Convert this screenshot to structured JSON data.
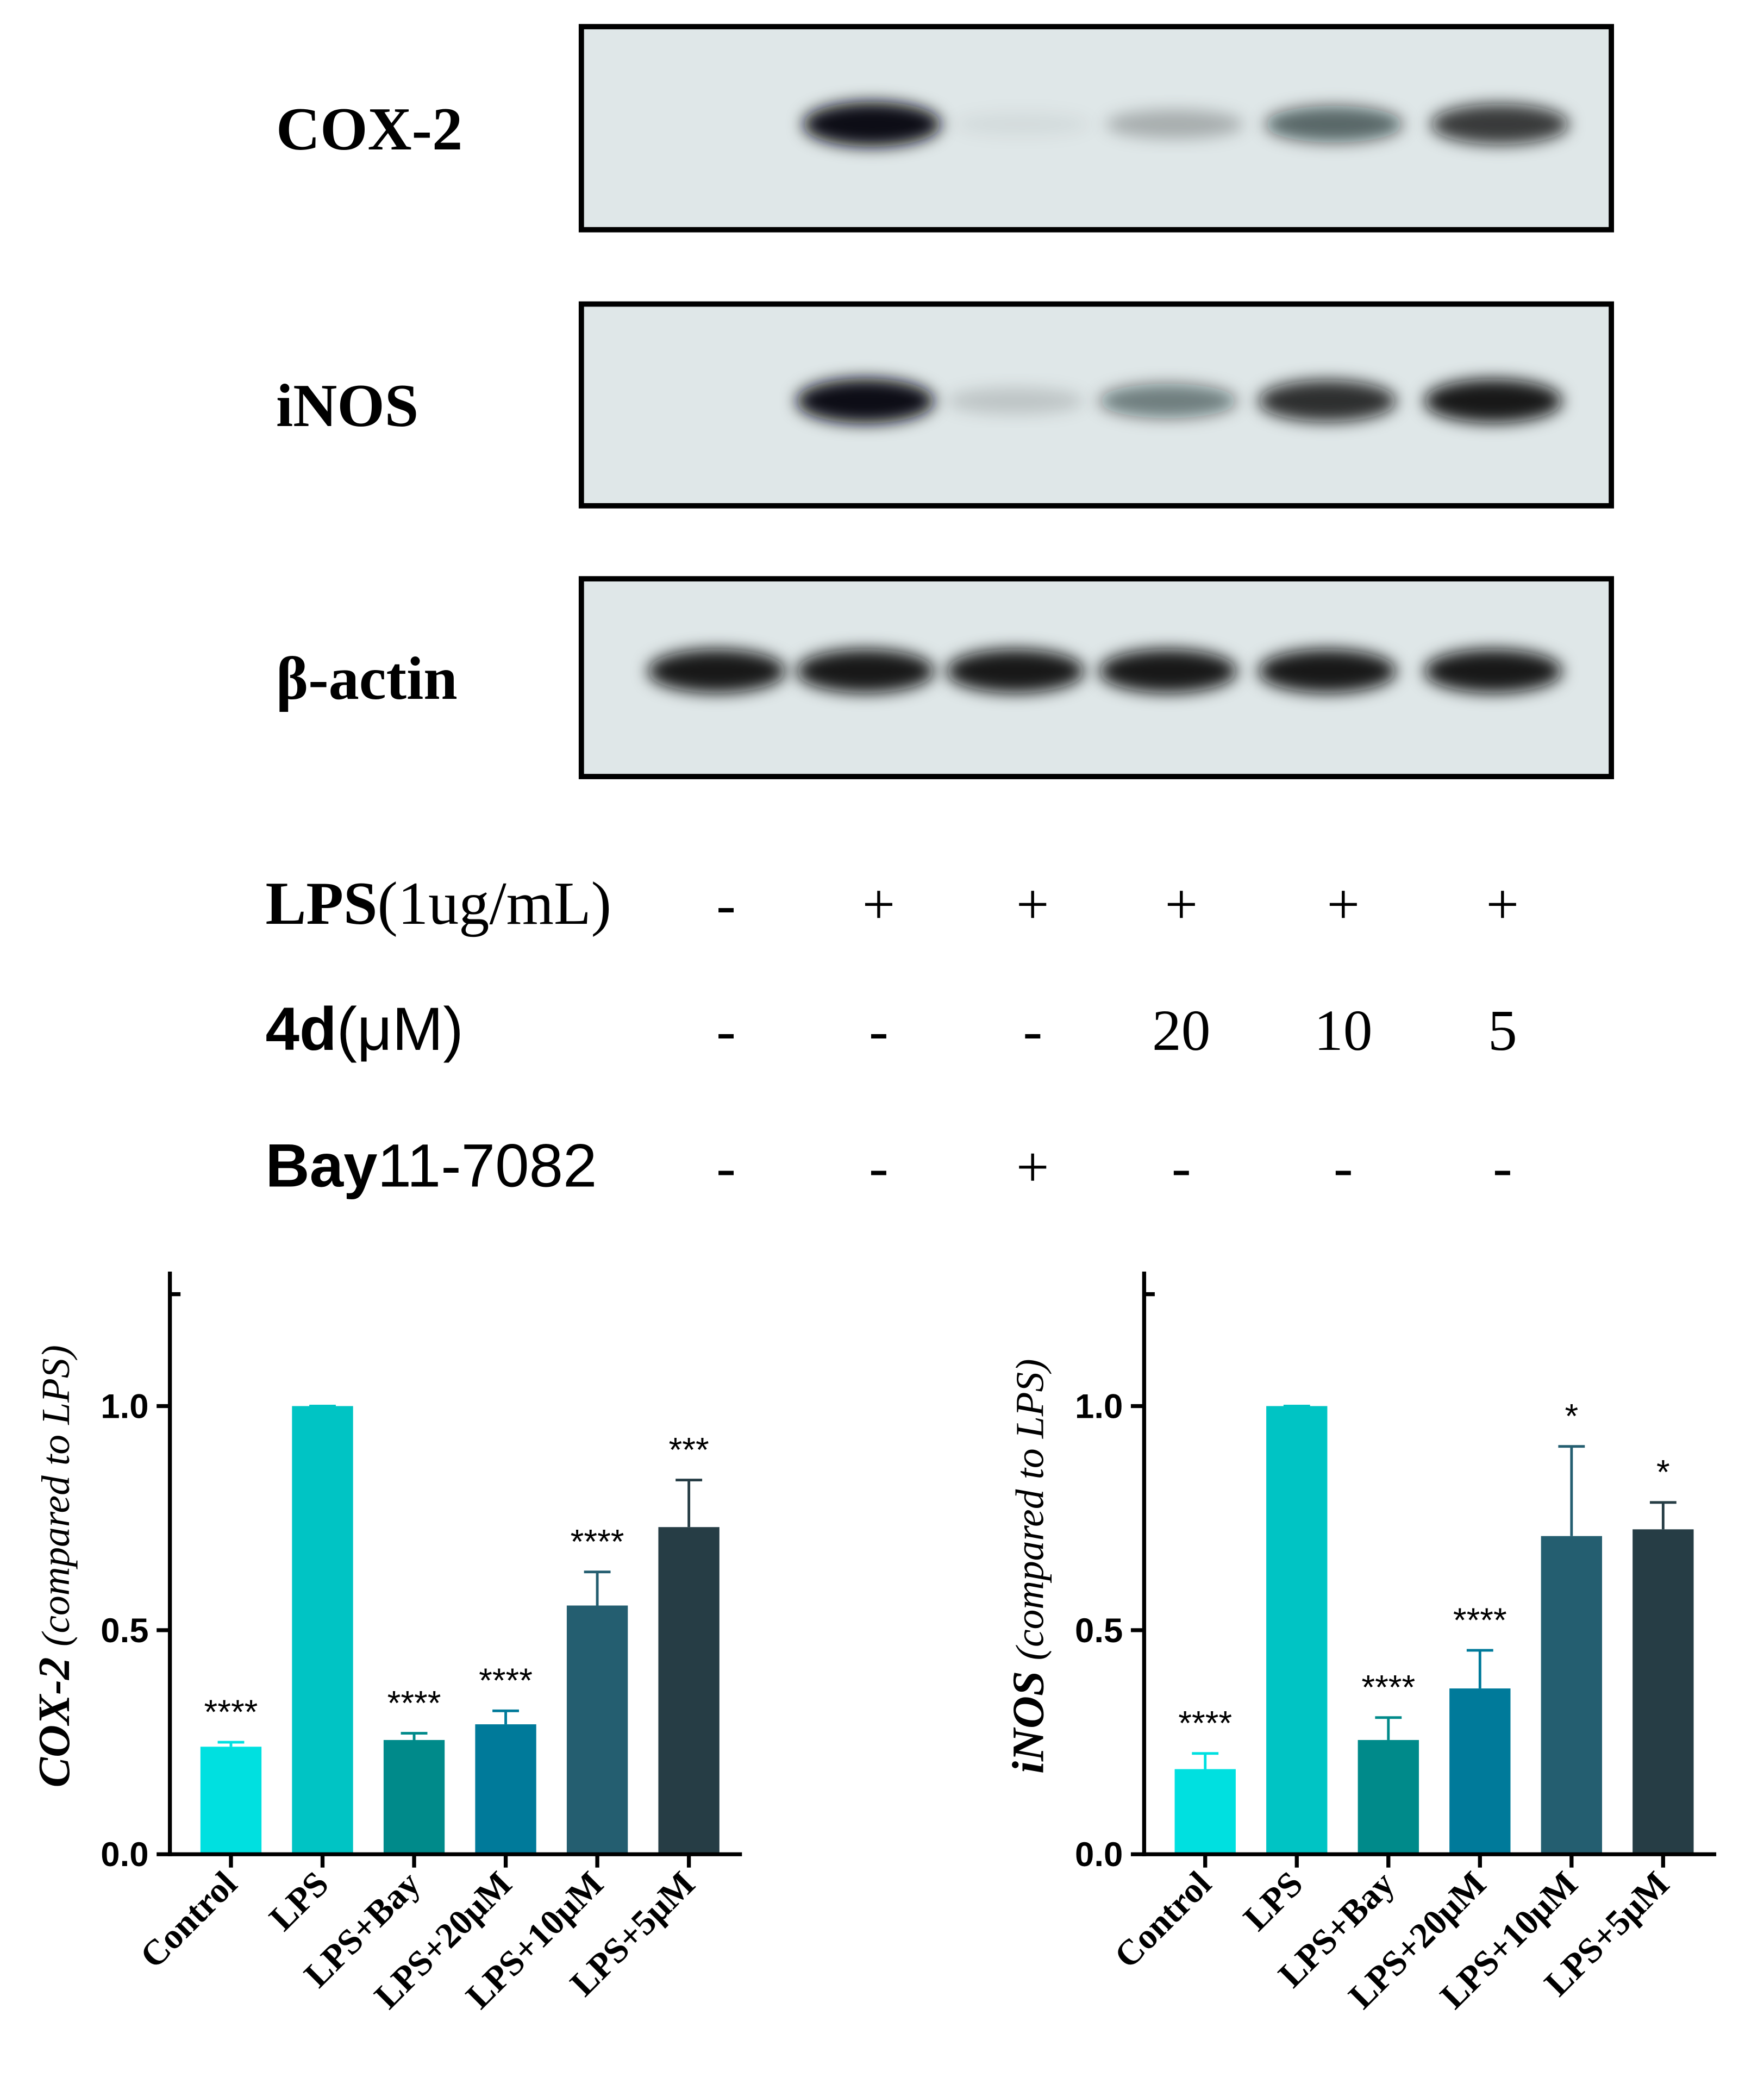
{
  "blot": {
    "proteins": [
      "COX-2",
      "iNOS",
      "β-actin"
    ],
    "treatments": [
      {
        "name": "LPS",
        "unit": "(1ug/mL)",
        "cells": [
          "-",
          "+",
          "+",
          "+",
          "+",
          "+"
        ]
      },
      {
        "name": "4d",
        "unit": "(μM)",
        "cells": [
          "-",
          "-",
          "-",
          "20",
          "10",
          "5"
        ]
      },
      {
        "name": "Bay",
        "unit": "11-7082",
        "cells": [
          "-",
          "-",
          "+",
          "-",
          "-",
          "-"
        ]
      }
    ]
  },
  "chart_data": [
    {
      "type": "bar",
      "y_label": "COX-2",
      "y_label_note": "(compared to LPS)",
      "categories": [
        "Control",
        "LPS",
        "LPS+Bay",
        "LPS+20μM",
        "LPS+10μM",
        "LPS+5μM"
      ],
      "values": [
        0.24,
        1.0,
        0.255,
        0.29,
        0.555,
        0.73
      ],
      "errors": [
        0.01,
        0,
        0.015,
        0.03,
        0.075,
        0.105
      ],
      "value_labels": [
        "****",
        null,
        "****",
        "****",
        "****",
        "***"
      ],
      "colors": [
        "#00e0e0",
        "#00c4c4",
        "#008a8a",
        "#007a9a",
        "#245e70",
        "#263d45"
      ],
      "ylim": [
        0,
        1.3
      ],
      "yticks": [
        {
          "value": 0,
          "label": "0.0"
        },
        0.5,
        {
          "value": 1,
          "label": "1.0"
        }
      ]
    },
    {
      "type": "bar",
      "y_label": "iNOS",
      "y_label_note": "(compared to LPS)",
      "categories": [
        "Control",
        "LPS",
        "LPS+Bay",
        "LPS+20μM",
        "LPS+10μM",
        "LPS+5μM"
      ],
      "values": [
        0.19,
        1.0,
        0.255,
        0.37,
        0.71,
        0.725
      ],
      "errors": [
        0.035,
        0,
        0.05,
        0.085,
        0.2,
        0.06
      ],
      "value_labels": [
        "****",
        null,
        "****",
        "****",
        "*",
        "*"
      ],
      "colors": [
        "#00e0e0",
        "#00c4c4",
        "#008a8a",
        "#007a9a",
        "#245e70",
        "#263d45"
      ],
      "ylim": [
        0,
        1.3
      ],
      "yticks": [
        {
          "value": 0,
          "label": "0.0"
        },
        0.5,
        {
          "value": 1,
          "label": "1.0"
        }
      ]
    }
  ]
}
